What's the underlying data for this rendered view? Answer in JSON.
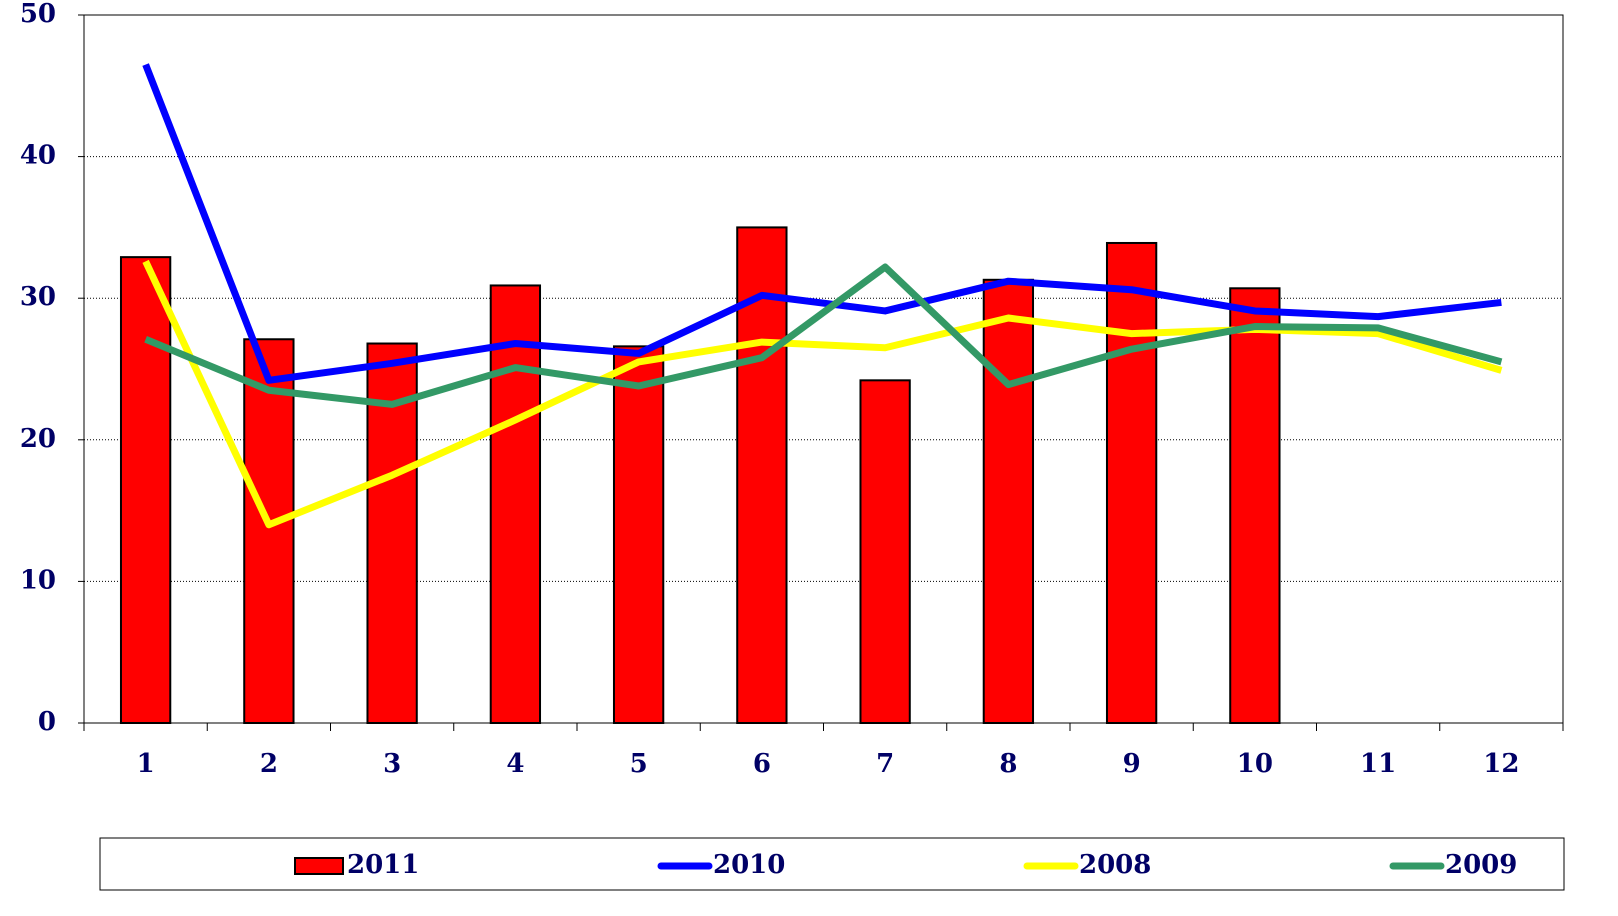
{
  "chart_data": {
    "type": "bar",
    "categories": [
      "1",
      "2",
      "3",
      "4",
      "5",
      "6",
      "7",
      "8",
      "9",
      "10",
      "11",
      "12"
    ],
    "series": [
      {
        "name": "2011",
        "type": "bar",
        "color": "#ff0000",
        "values": [
          32.9,
          27.1,
          26.8,
          30.9,
          26.6,
          35.0,
          24.2,
          31.3,
          33.9,
          30.7,
          null,
          null
        ]
      },
      {
        "name": "2010",
        "type": "line",
        "color": "#0000ff",
        "values": [
          46.5,
          24.2,
          25.4,
          26.8,
          26.1,
          30.2,
          29.1,
          31.2,
          30.6,
          29.1,
          28.7,
          29.7
        ]
      },
      {
        "name": "2008",
        "type": "line",
        "color": "#ffff00",
        "values": [
          32.6,
          14.0,
          17.5,
          21.4,
          25.5,
          26.9,
          26.5,
          28.6,
          27.5,
          27.8,
          27.5,
          24.9
        ]
      },
      {
        "name": "2009",
        "type": "line",
        "color": "#339966",
        "values": [
          27.1,
          23.5,
          22.5,
          25.1,
          23.8,
          25.8,
          32.2,
          23.9,
          26.4,
          28.0,
          27.9,
          25.5
        ]
      }
    ],
    "ylim": [
      0,
      50
    ],
    "yticks": [
      0,
      10,
      20,
      30,
      40,
      50
    ],
    "grid": true,
    "legend": "bottom"
  }
}
